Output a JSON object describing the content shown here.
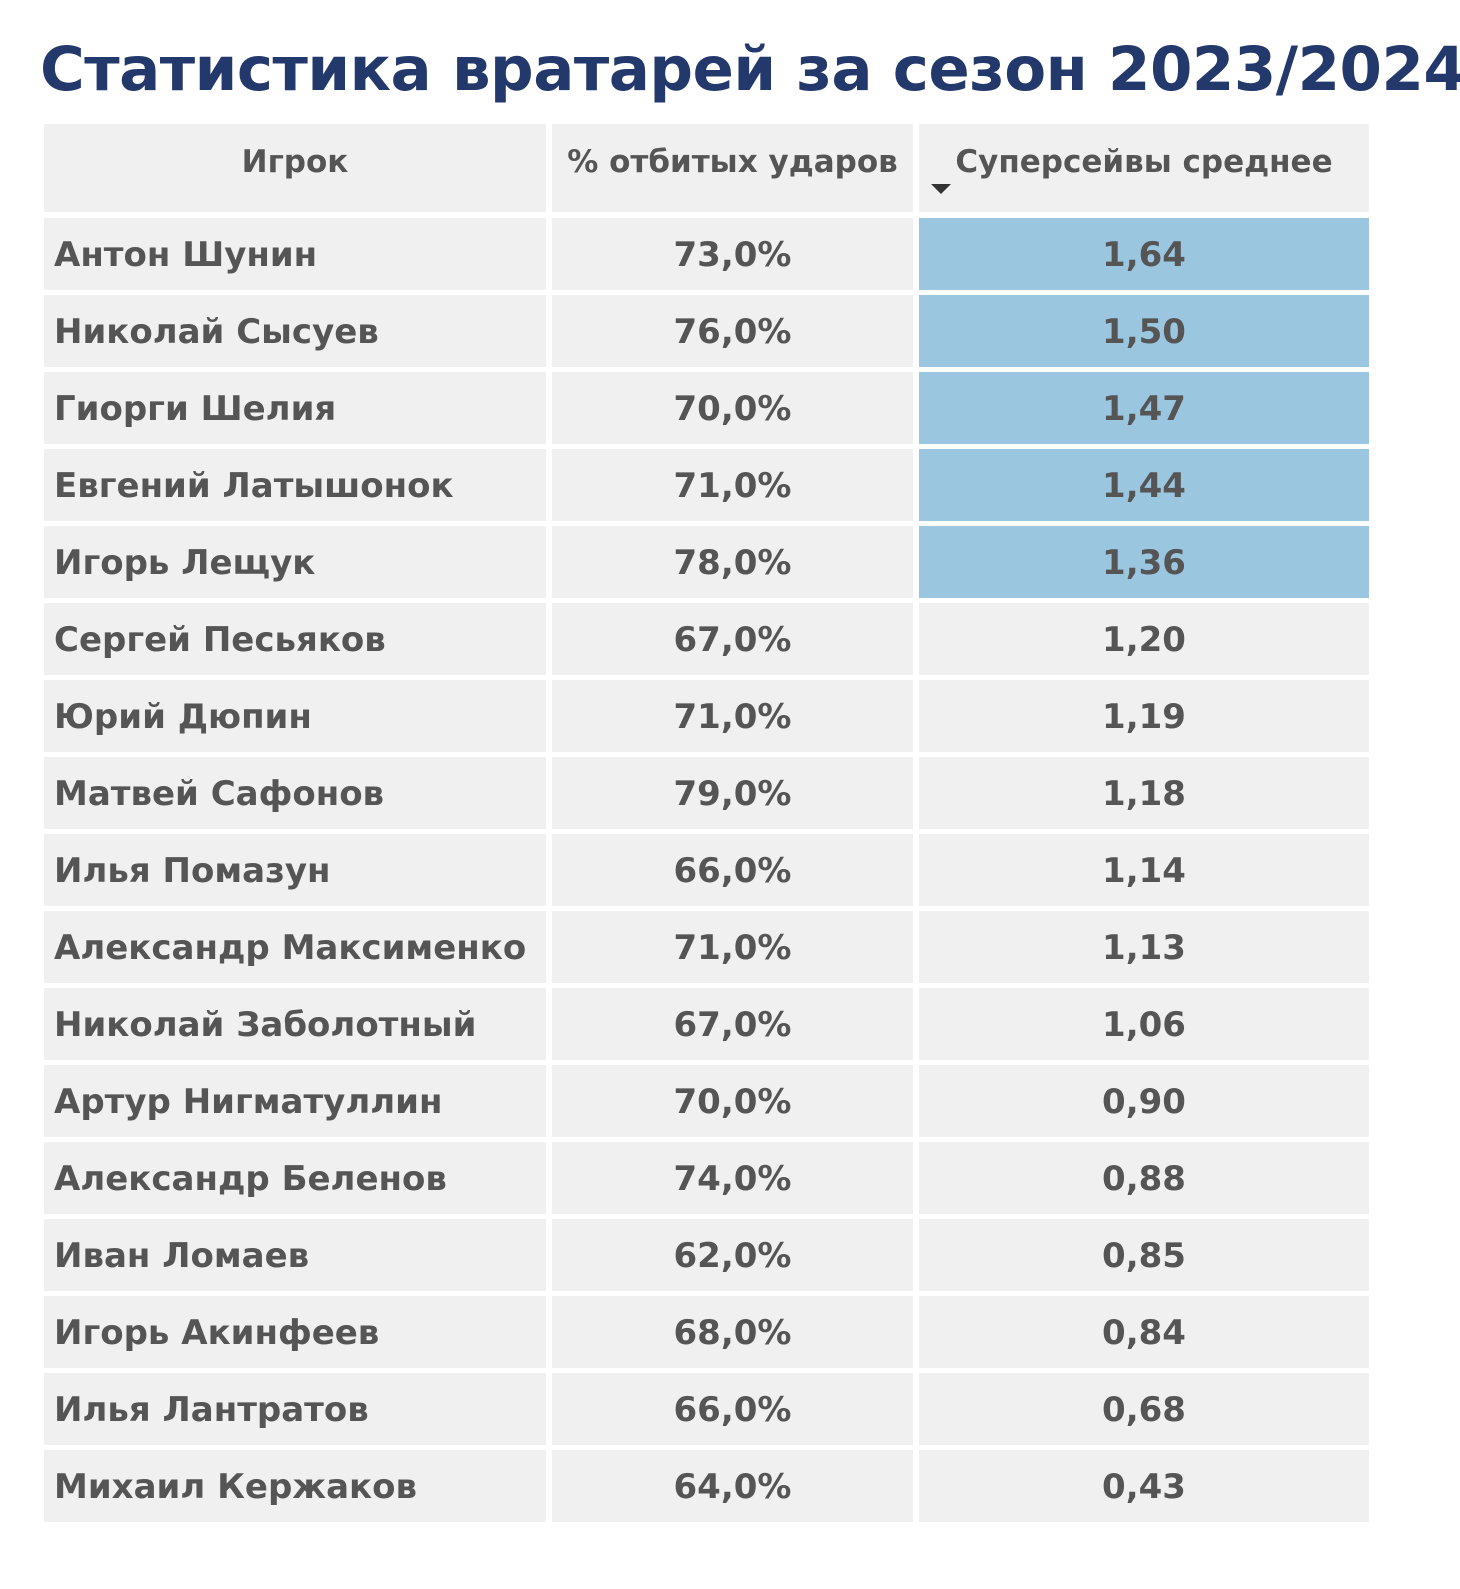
{
  "title": "Статистика вратарей за сезон 2023/2024",
  "colors": {
    "title": "#23386b",
    "cell_bg": "#f0f0f0",
    "highlight_bg": "#9bc6e0",
    "text": "#555555"
  },
  "table": {
    "headers": [
      "Игрок",
      "% отбитых ударов",
      "Суперсейвы среднее"
    ],
    "sort": {
      "column": "Суперсейвы среднее",
      "direction": "descending",
      "icon": "sort-desc-icon"
    },
    "rows": [
      {
        "player": "Антон Шунин",
        "save_pct": "73,0%",
        "supersaves_avg": "1,64",
        "highlighted": true
      },
      {
        "player": "Николай Сысуев",
        "save_pct": "76,0%",
        "supersaves_avg": "1,50",
        "highlighted": true
      },
      {
        "player": "Гиорги Шелия",
        "save_pct": "70,0%",
        "supersaves_avg": "1,47",
        "highlighted": true
      },
      {
        "player": "Евгений Латышонок",
        "save_pct": "71,0%",
        "supersaves_avg": "1,44",
        "highlighted": true
      },
      {
        "player": "Игорь Лещук",
        "save_pct": "78,0%",
        "supersaves_avg": "1,36",
        "highlighted": true
      },
      {
        "player": "Сергей Песьяков",
        "save_pct": "67,0%",
        "supersaves_avg": "1,20",
        "highlighted": false
      },
      {
        "player": "Юрий Дюпин",
        "save_pct": "71,0%",
        "supersaves_avg": "1,19",
        "highlighted": false
      },
      {
        "player": "Матвей Сафонов",
        "save_pct": "79,0%",
        "supersaves_avg": "1,18",
        "highlighted": false
      },
      {
        "player": "Илья Помазун",
        "save_pct": "66,0%",
        "supersaves_avg": "1,14",
        "highlighted": false
      },
      {
        "player": "Александр Максименко",
        "save_pct": "71,0%",
        "supersaves_avg": "1,13",
        "highlighted": false
      },
      {
        "player": "Николай Заболотный",
        "save_pct": "67,0%",
        "supersaves_avg": "1,06",
        "highlighted": false
      },
      {
        "player": "Артур Нигматуллин",
        "save_pct": "70,0%",
        "supersaves_avg": "0,90",
        "highlighted": false
      },
      {
        "player": "Александр Беленов",
        "save_pct": "74,0%",
        "supersaves_avg": "0,88",
        "highlighted": false
      },
      {
        "player": "Иван Ломаев",
        "save_pct": "62,0%",
        "supersaves_avg": "0,85",
        "highlighted": false
      },
      {
        "player": "Игорь Акинфеев",
        "save_pct": "68,0%",
        "supersaves_avg": "0,84",
        "highlighted": false
      },
      {
        "player": "Илья Лантратов",
        "save_pct": "66,0%",
        "supersaves_avg": "0,68",
        "highlighted": false
      },
      {
        "player": "Михаил Кержаков",
        "save_pct": "64,0%",
        "supersaves_avg": "0,43",
        "highlighted": false
      }
    ]
  }
}
